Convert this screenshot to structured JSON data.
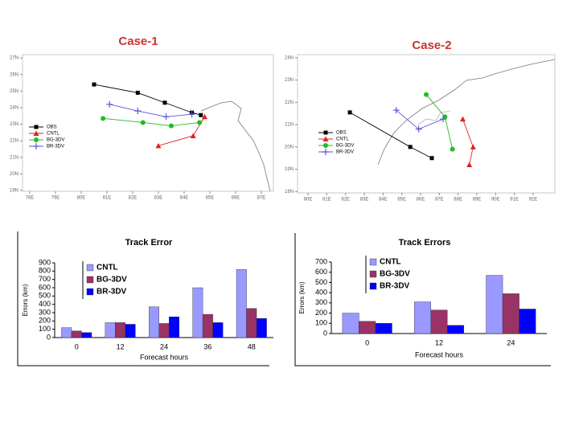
{
  "chart_data": [
    {
      "type": "line",
      "title": "Case-1",
      "legend": "left",
      "xlim": [
        77.72,
        87.47
      ],
      "ylim": [
        18.95,
        27.2
      ],
      "xticks": [
        {
          "value": 78,
          "label": "78E"
        },
        {
          "value": 79,
          "label": "79E"
        },
        {
          "value": 80,
          "label": "80E"
        },
        {
          "value": 81,
          "label": "81E"
        },
        {
          "value": 82,
          "label": "82E"
        },
        {
          "value": 83,
          "label": "83E"
        },
        {
          "value": 84,
          "label": "84E"
        },
        {
          "value": 85,
          "label": "85E"
        },
        {
          "value": 86,
          "label": "86E"
        },
        {
          "value": 87,
          "label": "87E"
        }
      ],
      "yticks": [
        {
          "value": 27,
          "label": "27N"
        },
        {
          "value": 26,
          "label": "26N"
        },
        {
          "value": 25,
          "label": "25N"
        },
        {
          "value": 24,
          "label": "24N"
        },
        {
          "value": 23,
          "label": "23N"
        },
        {
          "value": 22,
          "label": "22N"
        },
        {
          "value": 21,
          "label": "21N"
        },
        {
          "value": 20,
          "label": "20N"
        },
        {
          "value": 19,
          "label": "19N"
        }
      ],
      "series": [
        {
          "name": "OBS",
          "color": "#000000",
          "marker": "square",
          "x": [
            80.5,
            82.2,
            83.25,
            84.3,
            84.65
          ],
          "values": [
            25.4,
            24.9,
            24.3,
            23.7,
            23.55
          ]
        },
        {
          "name": "CNTL",
          "color": "#dd2222",
          "marker": "triangle",
          "x": [
            83.0,
            84.35,
            84.8
          ],
          "values": [
            21.7,
            22.3,
            23.45
          ]
        },
        {
          "name": "BG-3DV",
          "color": "#22bb22",
          "marker": "circle",
          "x": [
            80.85,
            82.4,
            83.5,
            84.6
          ],
          "values": [
            23.35,
            23.1,
            22.9,
            23.1
          ]
        },
        {
          "name": "BR-3DV",
          "color": "#5555dd",
          "marker": "plus",
          "x": [
            81.1,
            82.2,
            83.3,
            84.3
          ],
          "values": [
            24.2,
            23.8,
            23.45,
            23.6
          ]
        }
      ]
    },
    {
      "type": "bar",
      "title": "Track Error",
      "x_label": "Forecast hours",
      "y_label": "Errors (km)",
      "legend": "upper left",
      "categories": [
        "0",
        "12",
        "24",
        "36",
        "48"
      ],
      "ylim": [
        0,
        900
      ],
      "yticks": [
        0,
        100,
        200,
        300,
        400,
        500,
        600,
        700,
        800,
        900
      ],
      "series": [
        {
          "name": "CNTL",
          "color": "#9999ff",
          "values": [
            120,
            180,
            370,
            600,
            820
          ]
        },
        {
          "name": "BG-3DV",
          "color": "#993366",
          "values": [
            80,
            180,
            170,
            280,
            350
          ]
        },
        {
          "name": "BR-3DV",
          "color": "#0000ff",
          "values": [
            60,
            160,
            250,
            180,
            230
          ]
        }
      ]
    },
    {
      "type": "line",
      "title": "Case-2",
      "legend": "left",
      "xlim": [
        79.44,
        93.16
      ],
      "ylim": [
        17.94,
        24.14
      ],
      "xticks": [
        {
          "value": 80,
          "label": "80E"
        },
        {
          "value": 81,
          "label": "81E"
        },
        {
          "value": 82,
          "label": "82E"
        },
        {
          "value": 83,
          "label": "83E"
        },
        {
          "value": 84,
          "label": "84E"
        },
        {
          "value": 85,
          "label": "85E"
        },
        {
          "value": 86,
          "label": "86E"
        },
        {
          "value": 87,
          "label": "87E"
        },
        {
          "value": 88,
          "label": "88E"
        },
        {
          "value": 89,
          "label": "89E"
        },
        {
          "value": 90,
          "label": "90E"
        },
        {
          "value": 91,
          "label": "91E"
        },
        {
          "value": 92,
          "label": "92E"
        }
      ],
      "yticks": [
        {
          "value": 24,
          "label": "24N"
        },
        {
          "value": 23,
          "label": "23N"
        },
        {
          "value": 22,
          "label": "22N"
        },
        {
          "value": 21,
          "label": "21N"
        },
        {
          "value": 20,
          "label": "20N"
        },
        {
          "value": 19,
          "label": "19N"
        },
        {
          "value": 18,
          "label": "18N"
        }
      ],
      "series": [
        {
          "name": "OBS",
          "color": "#000000",
          "marker": "square",
          "x": [
            82.23,
            85.45,
            86.6
          ],
          "values": [
            21.55,
            20.0,
            19.5
          ]
        },
        {
          "name": "CNTL",
          "color": "#dd2222",
          "marker": "triangle",
          "x": [
            88.25,
            88.8,
            88.6
          ],
          "values": [
            21.25,
            20.0,
            19.2
          ]
        },
        {
          "name": "BG-3DV",
          "color": "#22bb22",
          "marker": "circle",
          "x": [
            86.3,
            87.3,
            87.7
          ],
          "values": [
            22.35,
            21.35,
            19.9
          ]
        },
        {
          "name": "BR-3DV",
          "color": "#5555dd",
          "marker": "plus",
          "x": [
            84.7,
            85.9,
            87.2
          ],
          "values": [
            21.65,
            20.8,
            21.25
          ]
        }
      ]
    },
    {
      "type": "bar",
      "title": "Track Errors",
      "x_label": "Forecast hours",
      "y_label": "Errors (km)",
      "legend": "upper left",
      "categories": [
        "0",
        "12",
        "24"
      ],
      "ylim": [
        0,
        700
      ],
      "yticks": [
        0,
        100,
        200,
        300,
        400,
        500,
        600,
        700
      ],
      "series": [
        {
          "name": "CNTL",
          "color": "#9999ff",
          "values": [
            200,
            310,
            570
          ]
        },
        {
          "name": "BG-3DV",
          "color": "#993366",
          "values": [
            120,
            230,
            390
          ]
        },
        {
          "name": "BR-3DV",
          "color": "#0000ff",
          "values": [
            100,
            80,
            240
          ]
        }
      ]
    }
  ]
}
